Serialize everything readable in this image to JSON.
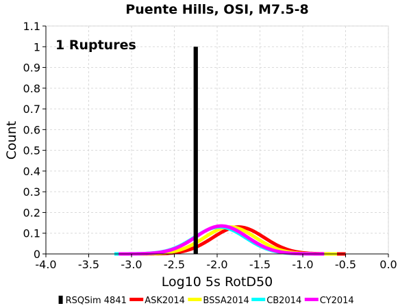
{
  "chart_data": {
    "type": "line",
    "title": "Puente Hills, OSI, M7.5-8",
    "xlabel": "Log10 5s RotD50",
    "ylabel": "Count",
    "xlim": [
      -4.0,
      0.0
    ],
    "ylim": [
      0,
      1.1
    ],
    "x_ticks": [
      "-4.0",
      "-3.5",
      "-3.0",
      "-2.5",
      "-2.0",
      "-1.5",
      "-1.0",
      "-0.5",
      "0.0"
    ],
    "y_ticks": [
      "0",
      "0.1",
      "0.2",
      "0.3",
      "0.4",
      "0.5",
      "0.6",
      "0.7",
      "0.8",
      "0.9",
      "1",
      "1.1"
    ],
    "grid": true,
    "legend_position": "bottom",
    "annotation": "1 Ruptures",
    "histogram": {
      "name": "RSQSim 4841",
      "color": "#000000",
      "bars": [
        {
          "x_start": -2.275,
          "x_end": -2.225,
          "count": 1
        }
      ]
    },
    "series": [
      {
        "name": "ASK2014",
        "color": "#ff0000",
        "mean": -1.75,
        "peak": 0.13,
        "x_range": [
          -3.05,
          -0.5
        ]
      },
      {
        "name": "BSSA2014",
        "color": "#ffff00",
        "mean": -1.85,
        "peak": 0.13,
        "x_range": [
          -3.1,
          -0.6
        ]
      },
      {
        "name": "CB2014",
        "color": "#00ffff",
        "mean": -1.97,
        "peak": 0.13,
        "x_range": [
          -3.2,
          -0.75
        ]
      },
      {
        "name": "CY2014",
        "color": "#ff00ff",
        "mean": -1.95,
        "peak": 0.135,
        "x_range": [
          -3.15,
          -0.75
        ]
      }
    ]
  }
}
